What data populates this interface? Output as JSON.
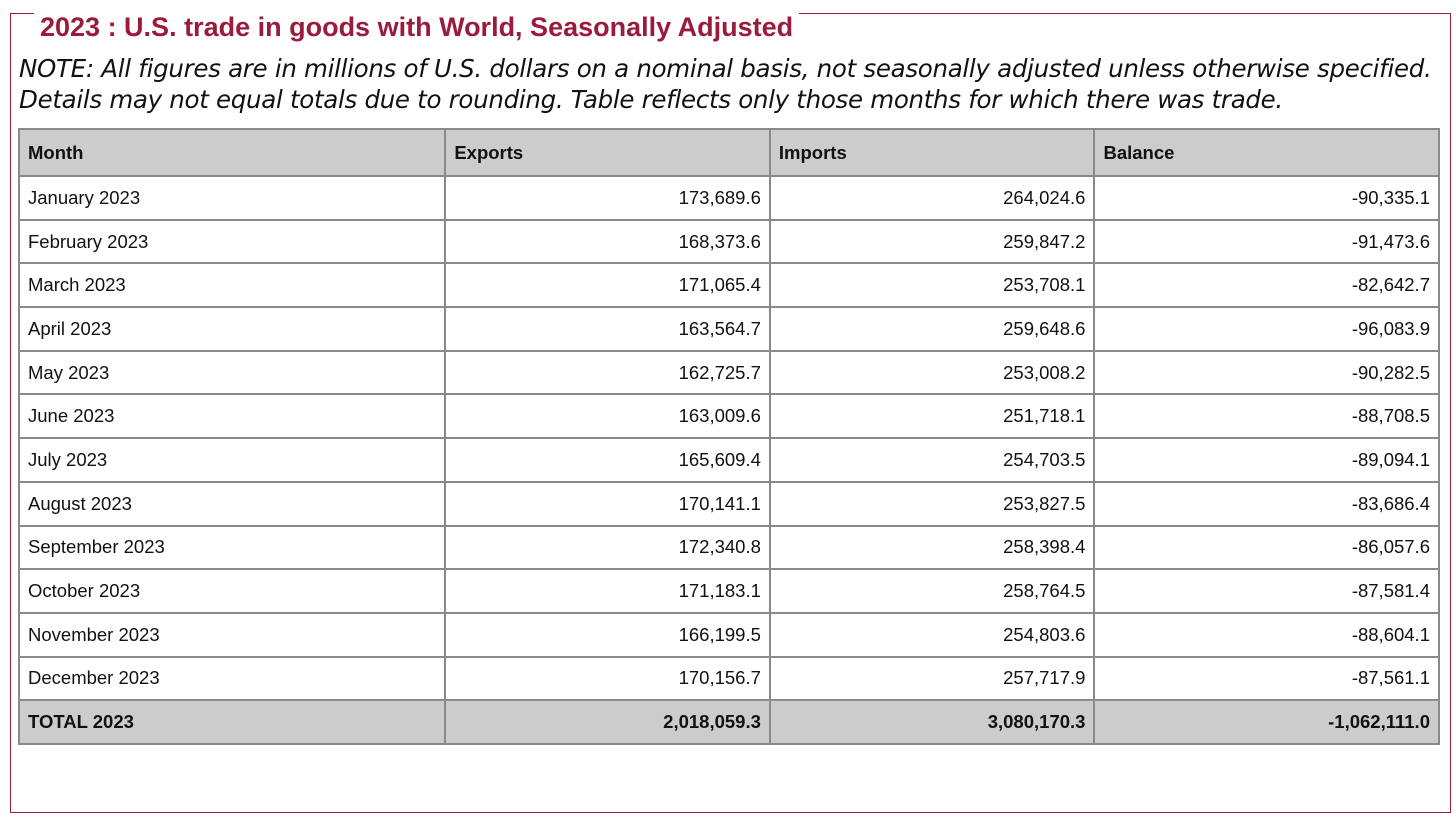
{
  "title": "2023 : U.S. trade in goods with World, Seasonally Adjusted",
  "note": "NOTE: All figures are in millions of U.S. dollars on a nominal basis, not seasonally adjusted unless otherwise specified. Details may not equal totals due to rounding. Table reflects only those months for which there was trade.",
  "colors": {
    "title": "#9a1b3b",
    "header_bg": "#cccccc",
    "border": "#8a8a8a"
  },
  "table": {
    "headers": [
      "Month",
      "Exports",
      "Imports",
      "Balance"
    ],
    "rows": [
      {
        "month": "January 2023",
        "exports": "173,689.6",
        "imports": "264,024.6",
        "balance": "-90,335.1"
      },
      {
        "month": "February 2023",
        "exports": "168,373.6",
        "imports": "259,847.2",
        "balance": "-91,473.6"
      },
      {
        "month": "March 2023",
        "exports": "171,065.4",
        "imports": "253,708.1",
        "balance": "-82,642.7"
      },
      {
        "month": "April 2023",
        "exports": "163,564.7",
        "imports": "259,648.6",
        "balance": "-96,083.9"
      },
      {
        "month": "May 2023",
        "exports": "162,725.7",
        "imports": "253,008.2",
        "balance": "-90,282.5"
      },
      {
        "month": "June 2023",
        "exports": "163,009.6",
        "imports": "251,718.1",
        "balance": "-88,708.5"
      },
      {
        "month": "July 2023",
        "exports": "165,609.4",
        "imports": "254,703.5",
        "balance": "-89,094.1"
      },
      {
        "month": "August 2023",
        "exports": "170,141.1",
        "imports": "253,827.5",
        "balance": "-83,686.4"
      },
      {
        "month": "September 2023",
        "exports": "172,340.8",
        "imports": "258,398.4",
        "balance": "-86,057.6"
      },
      {
        "month": "October 2023",
        "exports": "171,183.1",
        "imports": "258,764.5",
        "balance": "-87,581.4"
      },
      {
        "month": "November 2023",
        "exports": "166,199.5",
        "imports": "254,803.6",
        "balance": "-88,604.1"
      },
      {
        "month": "December 2023",
        "exports": "170,156.7",
        "imports": "257,717.9",
        "balance": "-87,561.1"
      }
    ],
    "total": {
      "month": "TOTAL 2023",
      "exports": "2,018,059.3",
      "imports": "3,080,170.3",
      "balance": "-1,062,111.0"
    }
  }
}
